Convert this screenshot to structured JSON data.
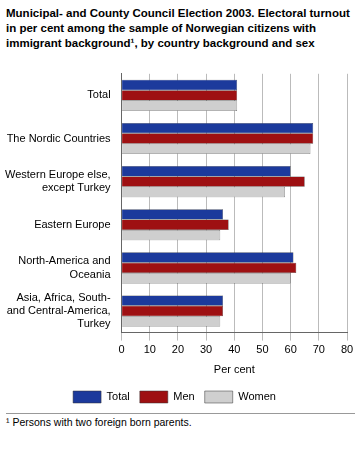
{
  "chart_data": {
    "type": "bar",
    "orientation": "horizontal",
    "title": "Municipal- and County Council Election 2003. Electoral turnout in per cent among the sample of Norwegian citizens with immigrant background¹, by country background and sex",
    "x_label": "Per cent",
    "footnote": "¹ Persons with two foreign born parents.",
    "categories": [
      "Total",
      "The Nordic Countries",
      "Western Europe else, except Turkey",
      "Eastern Europe",
      "North-America and Oceania",
      "Asia, Africa, South- and Central-America, Turkey"
    ],
    "series": [
      {
        "name": "Total",
        "color": "#1c3a9c",
        "values": [
          41,
          68,
          60,
          36,
          61,
          36
        ]
      },
      {
        "name": "Men",
        "color": "#9e1012",
        "values": [
          41,
          68,
          65,
          38,
          62,
          36
        ]
      },
      {
        "name": "Women",
        "color": "#cfcfcf",
        "values": [
          41,
          67,
          58,
          35,
          60,
          35
        ]
      }
    ],
    "xlim": [
      0,
      80
    ],
    "xticks": [
      0,
      10,
      20,
      30,
      40,
      50,
      60,
      70,
      80
    ],
    "grid": true,
    "legend": "bottom"
  }
}
